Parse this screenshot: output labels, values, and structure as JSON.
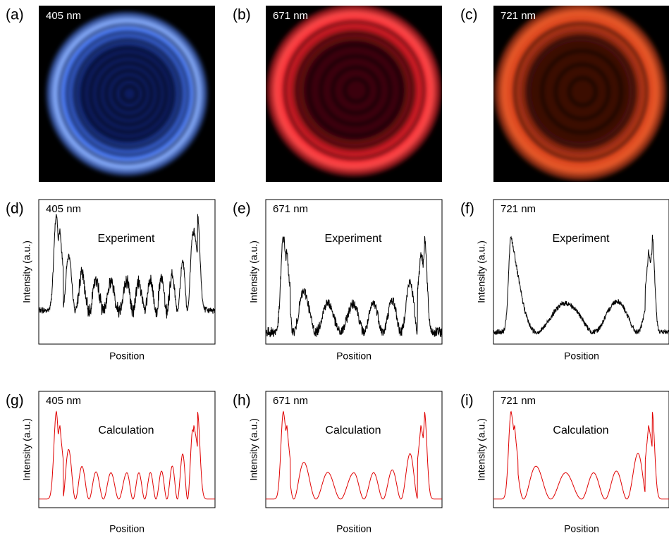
{
  "panels": [
    {
      "label": "(a)",
      "text": "405 nm"
    },
    {
      "label": "(b)",
      "text": "671 nm"
    },
    {
      "label": "(c)",
      "text": "721 nm"
    },
    {
      "label": "(d)",
      "text": "405 nm"
    },
    {
      "label": "(e)",
      "text": "671 nm"
    },
    {
      "label": "(f)",
      "text": "721 nm"
    },
    {
      "label": "(g)",
      "text": "405 nm"
    },
    {
      "label": "(h)",
      "text": "671 nm"
    },
    {
      "label": "(i)",
      "text": "721 nm"
    }
  ],
  "axis": {
    "ylabel": "Intensity (a.u.)",
    "xlabel": "Position"
  },
  "annotations": {
    "experiment": "Experiment",
    "calculation": "Calculation"
  }
}
